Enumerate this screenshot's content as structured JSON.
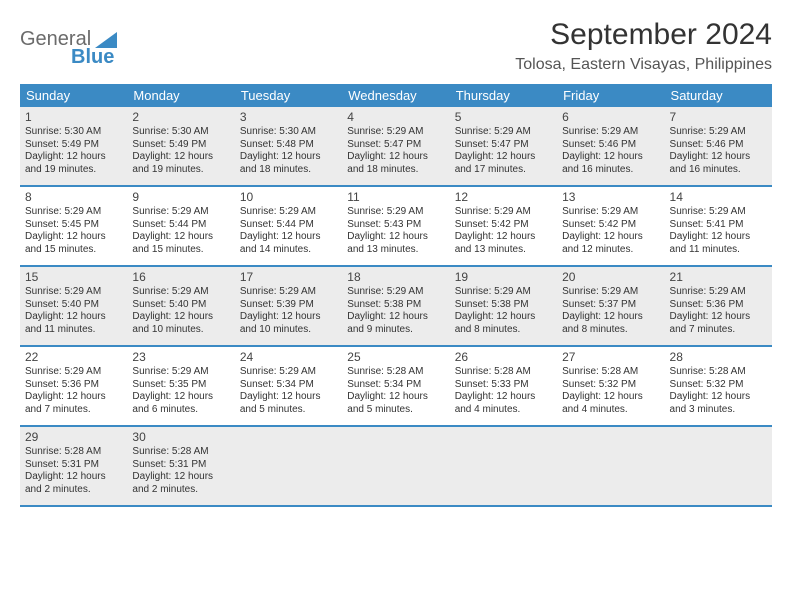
{
  "logo": {
    "text_general": "General",
    "text_blue": "Blue"
  },
  "title": "September 2024",
  "location": "Tolosa, Eastern Visayas, Philippines",
  "colors": {
    "header_bg": "#3b8ac4",
    "header_text": "#ffffff",
    "shaded_cell": "#ececec",
    "border": "#3b8ac4",
    "text": "#333333"
  },
  "typography": {
    "title_fontsize": 30,
    "location_fontsize": 16,
    "dayheader_fontsize": 13,
    "daynum_fontsize": 12,
    "info_fontsize": 10
  },
  "day_names": [
    "Sunday",
    "Monday",
    "Tuesday",
    "Wednesday",
    "Thursday",
    "Friday",
    "Saturday"
  ],
  "weeks": [
    {
      "shaded": true,
      "cells": [
        {
          "day": "1",
          "sunrise": "Sunrise: 5:30 AM",
          "sunset": "Sunset: 5:49 PM",
          "daylight": "Daylight: 12 hours and 19 minutes."
        },
        {
          "day": "2",
          "sunrise": "Sunrise: 5:30 AM",
          "sunset": "Sunset: 5:49 PM",
          "daylight": "Daylight: 12 hours and 19 minutes."
        },
        {
          "day": "3",
          "sunrise": "Sunrise: 5:30 AM",
          "sunset": "Sunset: 5:48 PM",
          "daylight": "Daylight: 12 hours and 18 minutes."
        },
        {
          "day": "4",
          "sunrise": "Sunrise: 5:29 AM",
          "sunset": "Sunset: 5:47 PM",
          "daylight": "Daylight: 12 hours and 18 minutes."
        },
        {
          "day": "5",
          "sunrise": "Sunrise: 5:29 AM",
          "sunset": "Sunset: 5:47 PM",
          "daylight": "Daylight: 12 hours and 17 minutes."
        },
        {
          "day": "6",
          "sunrise": "Sunrise: 5:29 AM",
          "sunset": "Sunset: 5:46 PM",
          "daylight": "Daylight: 12 hours and 16 minutes."
        },
        {
          "day": "7",
          "sunrise": "Sunrise: 5:29 AM",
          "sunset": "Sunset: 5:46 PM",
          "daylight": "Daylight: 12 hours and 16 minutes."
        }
      ]
    },
    {
      "shaded": false,
      "cells": [
        {
          "day": "8",
          "sunrise": "Sunrise: 5:29 AM",
          "sunset": "Sunset: 5:45 PM",
          "daylight": "Daylight: 12 hours and 15 minutes."
        },
        {
          "day": "9",
          "sunrise": "Sunrise: 5:29 AM",
          "sunset": "Sunset: 5:44 PM",
          "daylight": "Daylight: 12 hours and 15 minutes."
        },
        {
          "day": "10",
          "sunrise": "Sunrise: 5:29 AM",
          "sunset": "Sunset: 5:44 PM",
          "daylight": "Daylight: 12 hours and 14 minutes."
        },
        {
          "day": "11",
          "sunrise": "Sunrise: 5:29 AM",
          "sunset": "Sunset: 5:43 PM",
          "daylight": "Daylight: 12 hours and 13 minutes."
        },
        {
          "day": "12",
          "sunrise": "Sunrise: 5:29 AM",
          "sunset": "Sunset: 5:42 PM",
          "daylight": "Daylight: 12 hours and 13 minutes."
        },
        {
          "day": "13",
          "sunrise": "Sunrise: 5:29 AM",
          "sunset": "Sunset: 5:42 PM",
          "daylight": "Daylight: 12 hours and 12 minutes."
        },
        {
          "day": "14",
          "sunrise": "Sunrise: 5:29 AM",
          "sunset": "Sunset: 5:41 PM",
          "daylight": "Daylight: 12 hours and 11 minutes."
        }
      ]
    },
    {
      "shaded": true,
      "cells": [
        {
          "day": "15",
          "sunrise": "Sunrise: 5:29 AM",
          "sunset": "Sunset: 5:40 PM",
          "daylight": "Daylight: 12 hours and 11 minutes."
        },
        {
          "day": "16",
          "sunrise": "Sunrise: 5:29 AM",
          "sunset": "Sunset: 5:40 PM",
          "daylight": "Daylight: 12 hours and 10 minutes."
        },
        {
          "day": "17",
          "sunrise": "Sunrise: 5:29 AM",
          "sunset": "Sunset: 5:39 PM",
          "daylight": "Daylight: 12 hours and 10 minutes."
        },
        {
          "day": "18",
          "sunrise": "Sunrise: 5:29 AM",
          "sunset": "Sunset: 5:38 PM",
          "daylight": "Daylight: 12 hours and 9 minutes."
        },
        {
          "day": "19",
          "sunrise": "Sunrise: 5:29 AM",
          "sunset": "Sunset: 5:38 PM",
          "daylight": "Daylight: 12 hours and 8 minutes."
        },
        {
          "day": "20",
          "sunrise": "Sunrise: 5:29 AM",
          "sunset": "Sunset: 5:37 PM",
          "daylight": "Daylight: 12 hours and 8 minutes."
        },
        {
          "day": "21",
          "sunrise": "Sunrise: 5:29 AM",
          "sunset": "Sunset: 5:36 PM",
          "daylight": "Daylight: 12 hours and 7 minutes."
        }
      ]
    },
    {
      "shaded": false,
      "cells": [
        {
          "day": "22",
          "sunrise": "Sunrise: 5:29 AM",
          "sunset": "Sunset: 5:36 PM",
          "daylight": "Daylight: 12 hours and 7 minutes."
        },
        {
          "day": "23",
          "sunrise": "Sunrise: 5:29 AM",
          "sunset": "Sunset: 5:35 PM",
          "daylight": "Daylight: 12 hours and 6 minutes."
        },
        {
          "day": "24",
          "sunrise": "Sunrise: 5:29 AM",
          "sunset": "Sunset: 5:34 PM",
          "daylight": "Daylight: 12 hours and 5 minutes."
        },
        {
          "day": "25",
          "sunrise": "Sunrise: 5:28 AM",
          "sunset": "Sunset: 5:34 PM",
          "daylight": "Daylight: 12 hours and 5 minutes."
        },
        {
          "day": "26",
          "sunrise": "Sunrise: 5:28 AM",
          "sunset": "Sunset: 5:33 PM",
          "daylight": "Daylight: 12 hours and 4 minutes."
        },
        {
          "day": "27",
          "sunrise": "Sunrise: 5:28 AM",
          "sunset": "Sunset: 5:32 PM",
          "daylight": "Daylight: 12 hours and 4 minutes."
        },
        {
          "day": "28",
          "sunrise": "Sunrise: 5:28 AM",
          "sunset": "Sunset: 5:32 PM",
          "daylight": "Daylight: 12 hours and 3 minutes."
        }
      ]
    },
    {
      "shaded": true,
      "cells": [
        {
          "day": "29",
          "sunrise": "Sunrise: 5:28 AM",
          "sunset": "Sunset: 5:31 PM",
          "daylight": "Daylight: 12 hours and 2 minutes."
        },
        {
          "day": "30",
          "sunrise": "Sunrise: 5:28 AM",
          "sunset": "Sunset: 5:31 PM",
          "daylight": "Daylight: 12 hours and 2 minutes."
        },
        {
          "day": "",
          "sunrise": "",
          "sunset": "",
          "daylight": ""
        },
        {
          "day": "",
          "sunrise": "",
          "sunset": "",
          "daylight": ""
        },
        {
          "day": "",
          "sunrise": "",
          "sunset": "",
          "daylight": ""
        },
        {
          "day": "",
          "sunrise": "",
          "sunset": "",
          "daylight": ""
        },
        {
          "day": "",
          "sunrise": "",
          "sunset": "",
          "daylight": ""
        }
      ]
    }
  ]
}
